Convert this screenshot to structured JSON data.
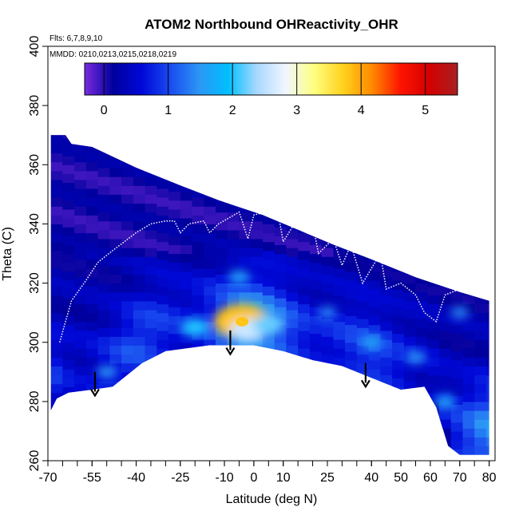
{
  "chart_data": {
    "type": "heatmap",
    "title": "ATOM2 Northbound OHReactivity_OHR",
    "annotations": {
      "flights": "Flts: 6,7,8,9,10",
      "dates": "MMDD: 0210,0213,0215,0218,0219"
    },
    "xlabel": "Latitude (deg N)",
    "ylabel": "Theta (C)",
    "xlim": [
      -70,
      82
    ],
    "ylim": [
      260,
      400
    ],
    "x_ticks": [
      -70,
      -55,
      -40,
      -25,
      -10,
      0,
      10,
      25,
      40,
      50,
      60,
      70,
      80
    ],
    "x_tick_labels": [
      "-70",
      "-55",
      "-40",
      "-25",
      "-10",
      "0",
      "10",
      "25",
      "40",
      "50",
      "60",
      "70",
      "80"
    ],
    "y_ticks": [
      260,
      280,
      300,
      320,
      340,
      360,
      380,
      400
    ],
    "y_tick_labels": [
      "260",
      "280",
      "300",
      "320",
      "340",
      "360",
      "380",
      "400"
    ],
    "colorbar": {
      "range": [
        -0.3,
        5.5
      ],
      "ticks": [
        0,
        1,
        2,
        3,
        4,
        5
      ],
      "tick_labels": [
        "0",
        "1",
        "2",
        "3",
        "4",
        "5"
      ],
      "colors": [
        "#7A2BE0",
        "#00009C",
        "#0008D8",
        "#1A4CF0",
        "#2C96F4",
        "#00BFFF",
        "#A8D8FF",
        "#F0F6FF",
        "#FFFF80",
        "#FFD21E",
        "#FF8C00",
        "#FF1400",
        "#D40000",
        "#A82020"
      ]
    },
    "top_boundary": [
      [
        -69,
        370
      ],
      [
        -64,
        370
      ],
      [
        -62,
        367
      ],
      [
        -55,
        366
      ],
      [
        -40,
        359
      ],
      [
        -25,
        353
      ],
      [
        -12,
        348
      ],
      [
        3,
        343
      ],
      [
        15,
        338
      ],
      [
        27,
        333
      ],
      [
        40,
        328
      ],
      [
        55,
        322
      ],
      [
        70,
        317
      ],
      [
        80,
        314
      ]
    ],
    "bottom_boundary": [
      [
        -69,
        277
      ],
      [
        -67,
        281
      ],
      [
        -63,
        283
      ],
      [
        -55,
        284
      ],
      [
        -48,
        285
      ],
      [
        -38,
        293
      ],
      [
        -30,
        297
      ],
      [
        -15,
        299
      ],
      [
        0,
        299
      ],
      [
        10,
        297
      ],
      [
        20,
        294
      ],
      [
        30,
        292
      ],
      [
        40,
        288
      ],
      [
        50,
        284
      ],
      [
        58,
        285
      ],
      [
        62,
        278
      ],
      [
        66,
        265
      ],
      [
        70,
        262
      ],
      [
        80,
        262
      ]
    ],
    "hotspots": [
      {
        "lat": -4,
        "theta": 307,
        "value": 3.8
      },
      {
        "lat": -2,
        "theta": 304,
        "value": 2.6
      },
      {
        "lat": 5,
        "theta": 306,
        "value": 2.2
      },
      {
        "lat": -20,
        "theta": 305,
        "value": 2.0
      },
      {
        "lat": 40,
        "theta": 300,
        "value": 1.6
      },
      {
        "lat": 55,
        "theta": 295,
        "value": 1.5
      },
      {
        "lat": -5,
        "theta": 322,
        "value": 1.6
      },
      {
        "lat": 65,
        "theta": 280,
        "value": 1.6
      },
      {
        "lat": -50,
        "theta": 290,
        "value": 1.5
      },
      {
        "lat": 25,
        "theta": 310,
        "value": 1.4
      },
      {
        "lat": 70,
        "theta": 310,
        "value": 1.4
      }
    ],
    "trajectory_line": [
      [
        -66,
        300
      ],
      [
        -62,
        314
      ],
      [
        -57,
        321
      ],
      [
        -53,
        327
      ],
      [
        -48,
        331
      ],
      [
        -44,
        334
      ],
      [
        -40,
        337
      ],
      [
        -35,
        340
      ],
      [
        -30,
        341
      ],
      [
        -27,
        341
      ],
      [
        -25,
        337
      ],
      [
        -22,
        340
      ],
      [
        -17,
        341
      ],
      [
        -15,
        337
      ],
      [
        -12,
        340
      ],
      [
        -5,
        344
      ],
      [
        -2,
        335
      ],
      [
        0,
        343
      ],
      [
        8,
        345
      ],
      [
        10,
        334
      ],
      [
        15,
        342
      ],
      [
        20,
        340
      ],
      [
        22,
        330
      ],
      [
        27,
        335
      ],
      [
        30,
        326
      ],
      [
        33,
        333
      ],
      [
        37,
        320
      ],
      [
        43,
        330
      ],
      [
        45,
        318
      ],
      [
        50,
        320
      ],
      [
        55,
        316
      ],
      [
        58,
        310
      ],
      [
        62,
        307
      ],
      [
        65,
        316
      ],
      [
        70,
        318
      ],
      [
        75,
        317
      ]
    ],
    "arrows": [
      {
        "lat": -54,
        "theta_from": 290,
        "theta_to": 282
      },
      {
        "lat": -8,
        "theta_from": 304,
        "theta_to": 296
      },
      {
        "lat": 38,
        "theta_from": 293,
        "theta_to": 285
      }
    ]
  }
}
